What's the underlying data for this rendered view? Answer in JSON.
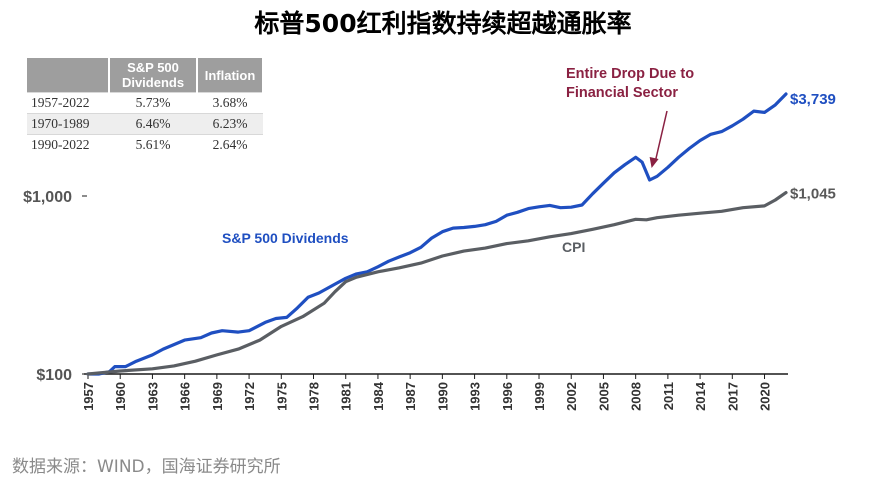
{
  "title": "标普500红利指数持续超越通胀率",
  "source": "数据来源：WIND，国海证券研究所",
  "stats_table": {
    "headers": [
      "",
      "S&P 500 Dividends",
      "Inflation"
    ],
    "rows": [
      [
        "1957-2022",
        "5.73%",
        "3.68%"
      ],
      [
        "1970-1989",
        "6.46%",
        "6.23%"
      ],
      [
        "1990-2022",
        "5.61%",
        "2.64%"
      ]
    ]
  },
  "colors": {
    "dividends": "#1f4fc1",
    "cpi": "#5a5e63",
    "annotation": "#8a2142",
    "axis": "#1a1a1a",
    "end_value_cpi": "#595959"
  },
  "chart_data": {
    "type": "line",
    "scale": "log",
    "title": "标普500红利指数持续超越通胀率",
    "xlim": [
      1957,
      2022
    ],
    "ylim": [
      100,
      6000
    ],
    "y_ticks": [
      100,
      1000
    ],
    "y_tick_labels": [
      "$100",
      "$1,000"
    ],
    "x_ticks": [
      1957,
      1960,
      1963,
      1966,
      1969,
      1972,
      1975,
      1978,
      1981,
      1984,
      1987,
      1990,
      1993,
      1996,
      1999,
      2002,
      2005,
      2008,
      2011,
      2014,
      2017,
      2020
    ],
    "x_tick_labels": [
      "1957",
      "1960",
      "1963",
      "1966",
      "1969",
      "1972",
      "1975",
      "1978",
      "1981",
      "1984",
      "1987",
      "1990",
      "1993",
      "1996",
      "1999",
      "2002",
      "2005",
      "2008",
      "2011",
      "2014",
      "2017",
      "2020"
    ],
    "series": [
      {
        "name": "S&P 500 Dividends",
        "end_label": "$3,739",
        "points": [
          [
            1957,
            100
          ],
          [
            1958,
            100
          ],
          [
            1959,
            103
          ],
          [
            1959.5,
            110
          ],
          [
            1960.5,
            110
          ],
          [
            1961.5,
            118
          ],
          [
            1963,
            128
          ],
          [
            1964,
            138
          ],
          [
            1966,
            155
          ],
          [
            1967.5,
            160
          ],
          [
            1968.5,
            170
          ],
          [
            1969.5,
            175
          ],
          [
            1971,
            172
          ],
          [
            1972,
            175
          ],
          [
            1973.5,
            195
          ],
          [
            1974.5,
            205
          ],
          [
            1975.5,
            208
          ],
          [
            1976.5,
            235
          ],
          [
            1977.5,
            270
          ],
          [
            1978.5,
            285
          ],
          [
            1980,
            320
          ],
          [
            1981,
            345
          ],
          [
            1982,
            365
          ],
          [
            1983,
            375
          ],
          [
            1984,
            400
          ],
          [
            1985,
            430
          ],
          [
            1986,
            455
          ],
          [
            1987,
            480
          ],
          [
            1988,
            515
          ],
          [
            1989,
            580
          ],
          [
            1990,
            630
          ],
          [
            1991,
            660
          ],
          [
            1992,
            665
          ],
          [
            1993,
            675
          ],
          [
            1994,
            690
          ],
          [
            1995,
            720
          ],
          [
            1996,
            780
          ],
          [
            1997,
            810
          ],
          [
            1998,
            850
          ],
          [
            1999,
            870
          ],
          [
            2000,
            885
          ],
          [
            2001,
            860
          ],
          [
            2002,
            865
          ],
          [
            2003,
            890
          ],
          [
            2004,
            1030
          ],
          [
            2005,
            1180
          ],
          [
            2006,
            1350
          ],
          [
            2007,
            1500
          ],
          [
            2008,
            1650
          ],
          [
            2008.6,
            1550
          ],
          [
            2009.3,
            1230
          ],
          [
            2010,
            1290
          ],
          [
            2011,
            1450
          ],
          [
            2012,
            1650
          ],
          [
            2013,
            1850
          ],
          [
            2014,
            2050
          ],
          [
            2015,
            2220
          ],
          [
            2016,
            2300
          ],
          [
            2017,
            2480
          ],
          [
            2018,
            2700
          ],
          [
            2019,
            3000
          ],
          [
            2020,
            2950
          ],
          [
            2021,
            3250
          ],
          [
            2022,
            3739
          ]
        ]
      },
      {
        "name": "CPI",
        "end_label": "$1,045",
        "points": [
          [
            1957,
            100
          ],
          [
            1960,
            104
          ],
          [
            1963,
            107
          ],
          [
            1965,
            111
          ],
          [
            1967,
            118
          ],
          [
            1969,
            128
          ],
          [
            1971,
            138
          ],
          [
            1973,
            155
          ],
          [
            1975,
            185
          ],
          [
            1977,
            210
          ],
          [
            1979,
            250
          ],
          [
            1980,
            290
          ],
          [
            1981,
            330
          ],
          [
            1982,
            350
          ],
          [
            1984,
            375
          ],
          [
            1986,
            395
          ],
          [
            1988,
            420
          ],
          [
            1990,
            460
          ],
          [
            1992,
            490
          ],
          [
            1994,
            510
          ],
          [
            1996,
            540
          ],
          [
            1998,
            560
          ],
          [
            2000,
            590
          ],
          [
            2002,
            615
          ],
          [
            2004,
            650
          ],
          [
            2006,
            690
          ],
          [
            2008,
            740
          ],
          [
            2009,
            735
          ],
          [
            2010,
            755
          ],
          [
            2012,
            780
          ],
          [
            2014,
            800
          ],
          [
            2016,
            820
          ],
          [
            2018,
            860
          ],
          [
            2020,
            880
          ],
          [
            2021,
            950
          ],
          [
            2022,
            1045
          ]
        ]
      }
    ],
    "annotations": [
      {
        "text_lines": [
          "Entire Drop Due to",
          "Financial Sector"
        ],
        "year": 2009.3,
        "value": 1230
      }
    ]
  }
}
